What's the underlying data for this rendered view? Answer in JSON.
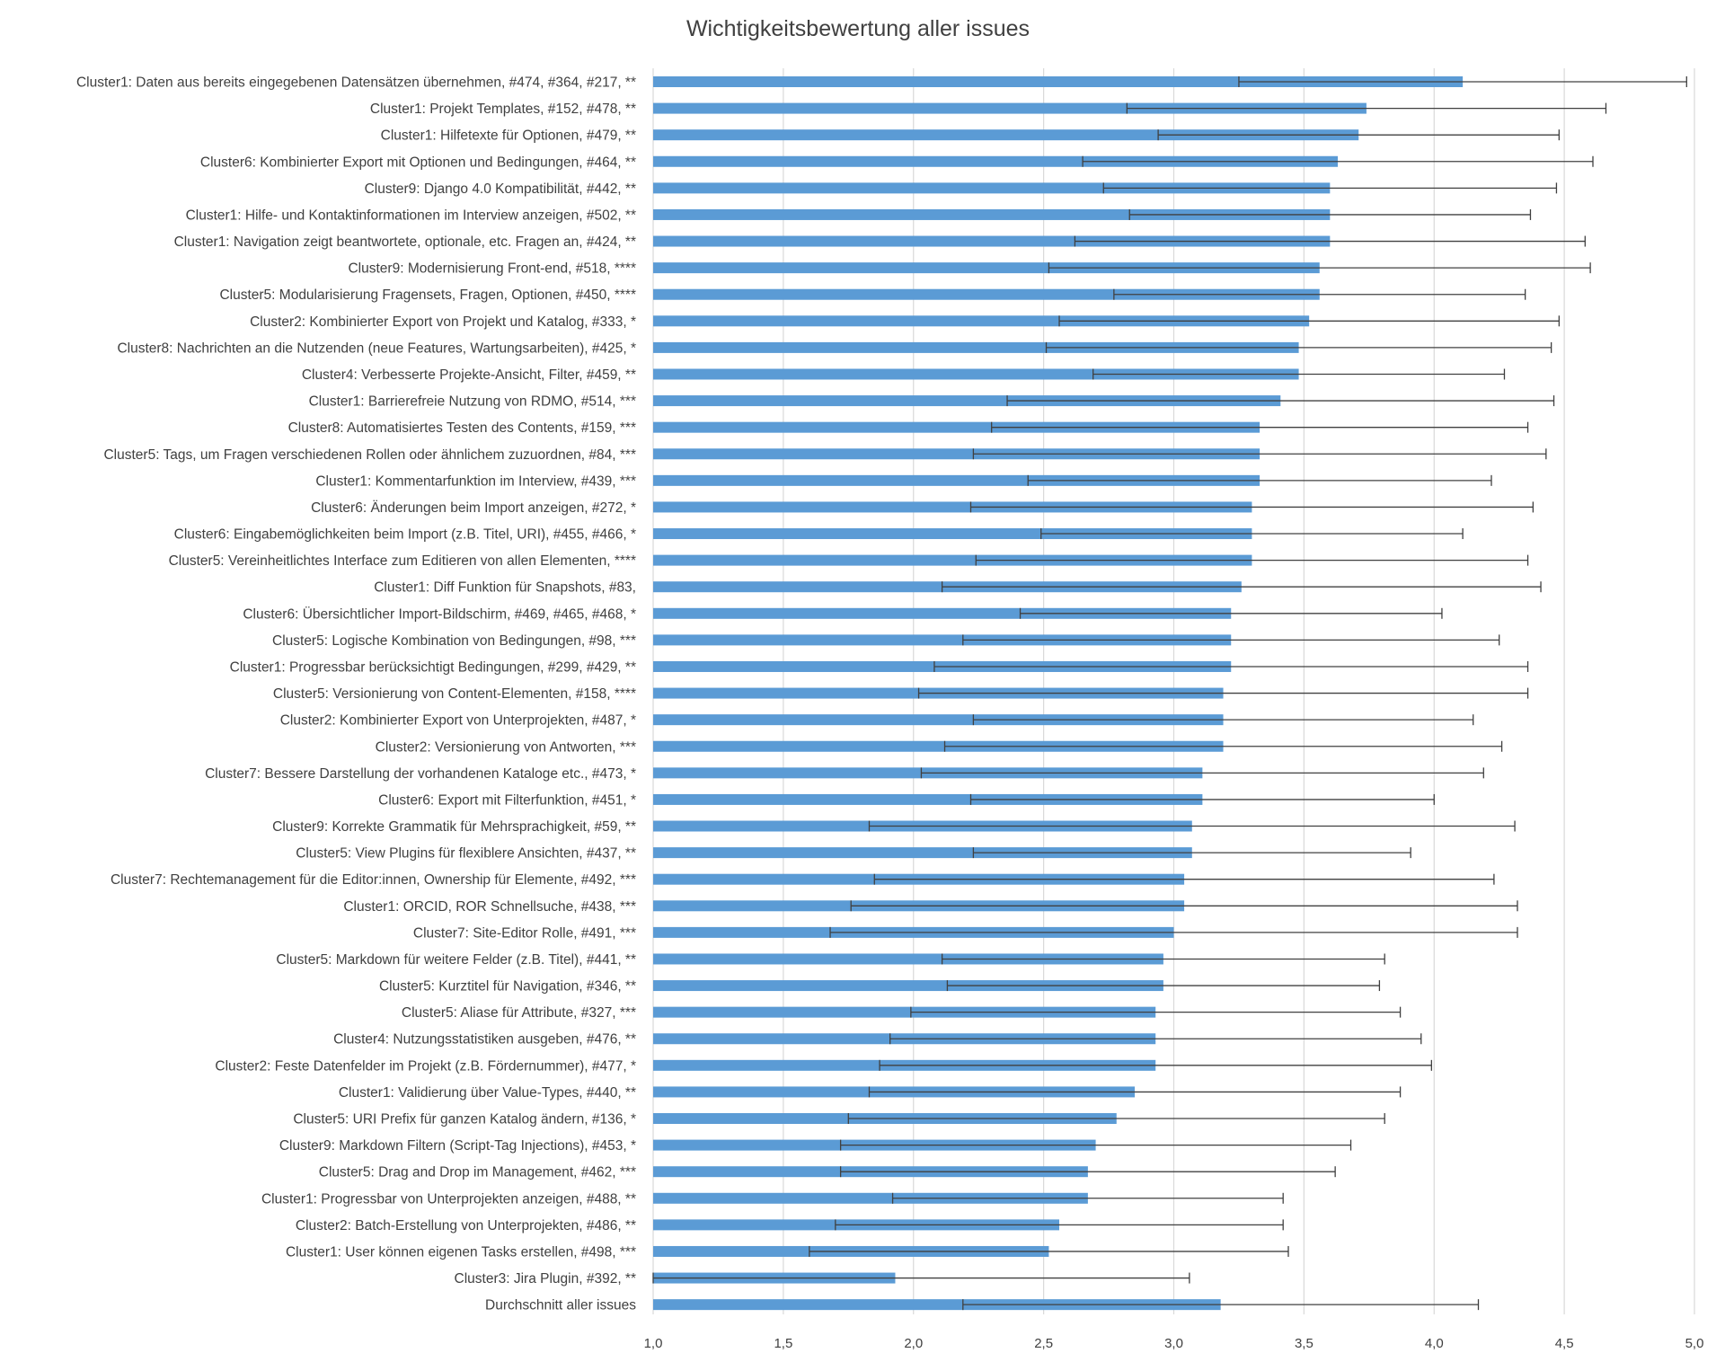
{
  "chart_data": {
    "type": "bar",
    "orientation": "horizontal",
    "title": "Wichtigkeitsbewertung aller issues",
    "xlabel": "",
    "ylabel": "",
    "xlim": [
      1.0,
      5.0
    ],
    "x_ticks": [
      "1,0",
      "1,5",
      "2,0",
      "2,5",
      "3,0",
      "3,5",
      "4,0",
      "4,5",
      "5,0"
    ],
    "x_tick_values": [
      1.0,
      1.5,
      2.0,
      2.5,
      3.0,
      3.5,
      4.0,
      4.5,
      5.0
    ],
    "grid": "vertical",
    "legend": "none",
    "bar_color": "#5b9bd5",
    "error_bar_color": "#404040",
    "categories": [
      "Cluster1: Daten aus bereits eingegebenen Datensätzen übernehmen, #474, #364, #217, **",
      "Cluster1: Projekt Templates, #152, #478, **",
      "Cluster1: Hilfetexte für Optionen, #479, **",
      "Cluster6: Kombinierter Export mit Optionen und Bedingungen, #464, **",
      "Cluster9: Django 4.0 Kompatibilität, #442, **",
      "Cluster1: Hilfe- und Kontaktinformationen im Interview anzeigen, #502, **",
      "Cluster1: Navigation zeigt beantwortete, optionale, etc. Fragen an, #424, **",
      "Cluster9: Modernisierung Front-end, #518, ****",
      "Cluster5: Modularisierung Fragensets, Fragen, Optionen, #450, ****",
      "Cluster2: Kombinierter Export von Projekt und Katalog, #333, *",
      "Cluster8: Nachrichten an die Nutzenden (neue Features, Wartungsarbeiten), #425, *",
      "Cluster4: Verbesserte Projekte-Ansicht, Filter, #459, **",
      "Cluster1: Barrierefreie Nutzung von RDMO, #514, ***",
      "Cluster8: Automatisiertes Testen des Contents, #159, ***",
      "Cluster5: Tags, um Fragen verschiedenen Rollen oder ähnlichem zuzuordnen, #84, ***",
      "Cluster1: Kommentarfunktion im Interview, #439, ***",
      "Cluster6: Änderungen beim Import anzeigen, #272, *",
      "Cluster6: Eingabemöglichkeiten beim Import (z.B. Titel, URI), #455, #466, *",
      "Cluster5: Vereinheitlichtes Interface zum Editieren von allen Elementen, ****",
      "Cluster1: Diff Funktion für Snapshots, #83,",
      "Cluster6: Übersichtlicher Import-Bildschirm, #469, #465, #468, *",
      "Cluster5: Logische Kombination von Bedingungen, #98, ***",
      "Cluster1: Progressbar berücksichtigt Bedingungen, #299, #429, **",
      "Cluster5: Versionierung von Content-Elementen, #158, ****",
      "Cluster2: Kombinierter Export von Unterprojekten, #487, *",
      "Cluster2: Versionierung von Antworten, ***",
      "Cluster7: Bessere Darstellung der vorhandenen Kataloge etc., #473, *",
      "Cluster6: Export mit Filterfunktion, #451, *",
      "Cluster9: Korrekte Grammatik für Mehrsprachigkeit, #59, **",
      "Cluster5: View Plugins für flexiblere Ansichten, #437, **",
      "Cluster7: Rechtemanagement für die Editor:innen, Ownership für Elemente, #492, ***",
      "Cluster1: ORCID, ROR Schnellsuche, #438, ***",
      "Cluster7: Site-Editor Rolle, #491, ***",
      "Cluster5: Markdown für weitere Felder (z.B. Titel), #441, **",
      "Cluster5: Kurztitel für Navigation, #346, **",
      "Cluster5: Aliase für Attribute, #327, ***",
      "Cluster4: Nutzungsstatistiken ausgeben, #476, **",
      "Cluster2: Feste Datenfelder im Projekt (z.B. Fördernummer), #477, *",
      "Cluster1: Validierung über Value-Types, #440, **",
      "Cluster5: URI Prefix für ganzen Katalog ändern, #136, *",
      "Cluster9: Markdown Filtern (Script-Tag Injections), #453, *",
      "Cluster5: Drag and Drop im Management, #462, ***",
      "Cluster1: Progressbar von Unterprojekten anzeigen, #488, **",
      "Cluster2: Batch-Erstellung von Unterprojekten, #486, **",
      "Cluster1: User können eigenen Tasks erstellen, #498, ***",
      "Cluster3: Jira Plugin, #392, **",
      "Durchschnitt aller issues"
    ],
    "values": [
      4.11,
      3.74,
      3.71,
      3.63,
      3.6,
      3.6,
      3.6,
      3.56,
      3.56,
      3.52,
      3.48,
      3.48,
      3.41,
      3.33,
      3.33,
      3.33,
      3.3,
      3.3,
      3.3,
      3.26,
      3.22,
      3.22,
      3.22,
      3.19,
      3.19,
      3.19,
      3.11,
      3.11,
      3.07,
      3.07,
      3.04,
      3.04,
      3.0,
      2.96,
      2.96,
      2.93,
      2.93,
      2.93,
      2.85,
      2.78,
      2.7,
      2.67,
      2.67,
      2.56,
      2.52,
      1.93,
      3.18
    ],
    "error": [
      0.86,
      0.92,
      0.77,
      0.98,
      0.87,
      0.77,
      0.98,
      1.04,
      0.79,
      0.96,
      0.97,
      0.79,
      1.05,
      1.03,
      1.1,
      0.89,
      1.08,
      0.81,
      1.06,
      1.15,
      0.81,
      1.03,
      1.14,
      1.17,
      0.96,
      1.07,
      1.08,
      0.89,
      1.24,
      0.84,
      1.19,
      1.28,
      1.32,
      0.85,
      0.83,
      0.94,
      1.02,
      1.06,
      1.02,
      1.03,
      0.98,
      0.95,
      0.75,
      0.86,
      0.92,
      1.13,
      0.99
    ]
  }
}
